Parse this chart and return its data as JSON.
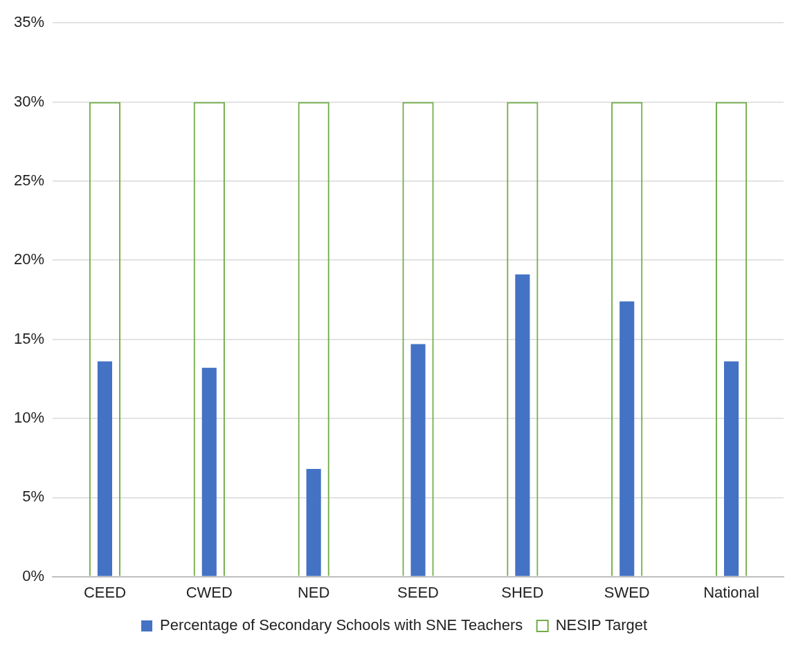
{
  "chart_data": {
    "type": "bar",
    "categories": [
      "CEED",
      "CWED",
      "NED",
      "SEED",
      "SHED",
      "SWED",
      "National"
    ],
    "series": [
      {
        "name": "Percentage of Secondary Schools with SNE Teachers",
        "color": "#4472c4",
        "values": [
          13.6,
          13.2,
          6.8,
          14.7,
          19.1,
          17.4,
          13.6
        ]
      },
      {
        "name": "NESIP Target",
        "color": "#70ad47",
        "values": [
          30,
          30,
          30,
          30,
          30,
          30,
          30
        ]
      }
    ],
    "ylim": [
      0,
      35
    ],
    "yticks": [
      {
        "value": 0,
        "label": "0%"
      },
      {
        "value": 5,
        "label": "5%"
      },
      {
        "value": 10,
        "label": "10%"
      },
      {
        "value": 15,
        "label": "15%"
      },
      {
        "value": 20,
        "label": "20%"
      },
      {
        "value": 25,
        "label": "25%"
      },
      {
        "value": 30,
        "label": "30%"
      },
      {
        "value": 35,
        "label": "35%"
      }
    ],
    "grid": "y",
    "legend": "bottom"
  }
}
